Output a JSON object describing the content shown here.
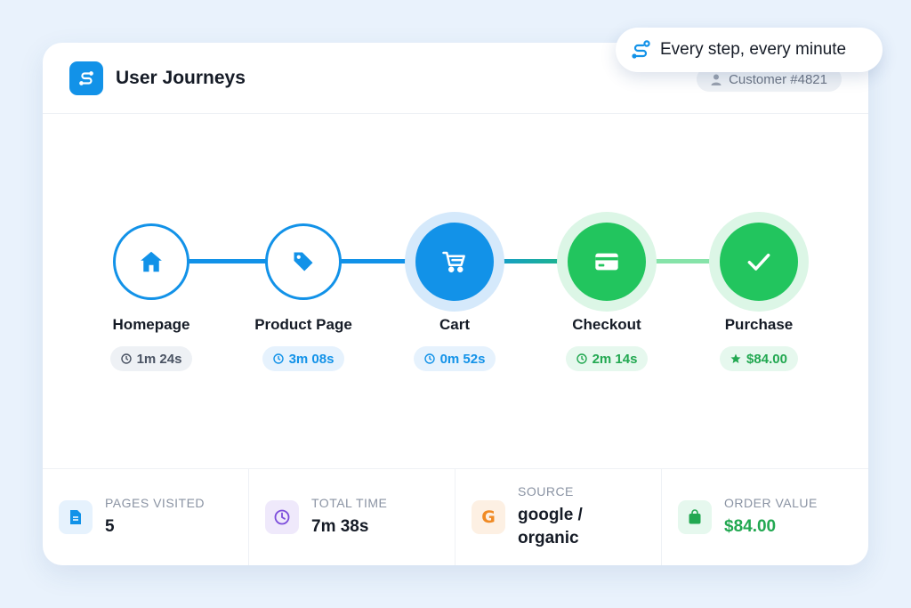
{
  "header": {
    "title": "User Journeys",
    "customer": "Customer #4821",
    "tagline": "Every step, every minute"
  },
  "steps": [
    {
      "label": "Homepage",
      "badge": "1m 24s",
      "icon": "home-icon",
      "style": "gray"
    },
    {
      "label": "Product Page",
      "badge": "3m 08s",
      "icon": "tag-icon",
      "style": "blue"
    },
    {
      "label": "Cart",
      "badge": "0m 52s",
      "icon": "cart-icon",
      "style": "blue"
    },
    {
      "label": "Checkout",
      "badge": "2m 14s",
      "icon": "credit-card-icon",
      "style": "green"
    },
    {
      "label": "Purchase",
      "badge": "$84.00",
      "icon": "check-icon",
      "style": "green"
    }
  ],
  "stats": [
    {
      "label": "PAGES VISITED",
      "value": "5",
      "icon": "document-icon"
    },
    {
      "label": "TOTAL TIME",
      "value": "7m 38s",
      "icon": "clock-icon"
    },
    {
      "label": "SOURCE",
      "value": "google / organic",
      "icon": "google-icon"
    },
    {
      "label": "ORDER VALUE",
      "value": "$84.00",
      "icon": "shopping-bag-icon"
    }
  ],
  "colors": {
    "blue": "#1292e8",
    "green": "#22c55e",
    "background": "#e9f2fc"
  }
}
